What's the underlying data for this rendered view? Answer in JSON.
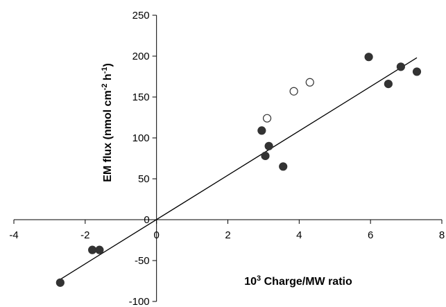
{
  "chart_data": {
    "type": "scatter",
    "title": "",
    "xlabel": {
      "base": "10",
      "sup": "3",
      "rest": " Charge/MW ratio"
    },
    "ylabel": {
      "prefix": "EM flux (nmol cm",
      "sup1": "-2",
      "mid": " h",
      "sup2": "-1",
      "suffix": ")"
    },
    "xlim": [
      -4,
      8
    ],
    "ylim": [
      -100,
      250
    ],
    "x_ticks": [
      -4,
      -2,
      0,
      2,
      4,
      6,
      8
    ],
    "y_ticks": [
      -100,
      -50,
      0,
      50,
      100,
      150,
      200,
      250
    ],
    "grid": false,
    "series": [
      {
        "marker": "filled-circle",
        "color": "#333333",
        "points": [
          {
            "x": -2.7,
            "y": -77
          },
          {
            "x": -1.8,
            "y": -37
          },
          {
            "x": -1.6,
            "y": -37
          },
          {
            "x": 2.95,
            "y": 109
          },
          {
            "x": 3.05,
            "y": 78
          },
          {
            "x": 3.15,
            "y": 90
          },
          {
            "x": 3.55,
            "y": 65
          },
          {
            "x": 5.95,
            "y": 199
          },
          {
            "x": 6.5,
            "y": 166
          },
          {
            "x": 6.85,
            "y": 187
          },
          {
            "x": 7.3,
            "y": 181
          }
        ]
      },
      {
        "marker": "open-circle",
        "color": "#333333",
        "points": [
          {
            "x": 3.1,
            "y": 124
          },
          {
            "x": 3.85,
            "y": 157
          },
          {
            "x": 4.3,
            "y": 168
          }
        ]
      }
    ],
    "trendline": {
      "x": [
        -2.7,
        7.3
      ],
      "y": [
        -73,
        198
      ]
    }
  }
}
